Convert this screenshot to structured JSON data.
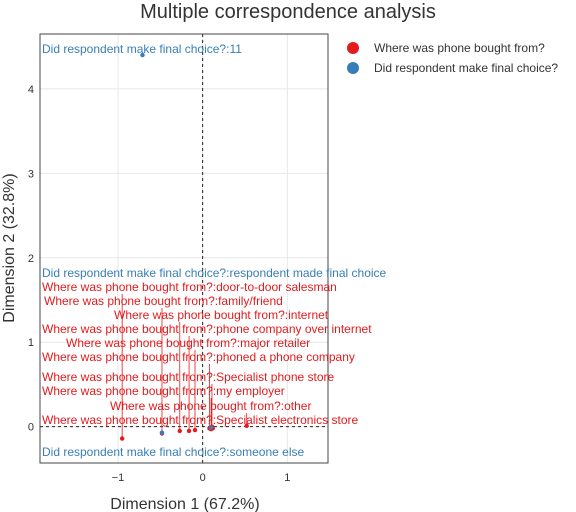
{
  "chart_data": {
    "type": "scatter",
    "title": "Multiple correspondence analysis",
    "xlabel": "Dimension 1 (67.2%)",
    "ylabel": "Dimension 2 (32.8%)",
    "xlim": [
      -1.92,
      1.48
    ],
    "ylim": [
      -0.43,
      4.65
    ],
    "xticks": [
      -1,
      0,
      1
    ],
    "yticks": [
      0,
      1,
      2,
      3,
      4
    ],
    "grid": true,
    "reference_lines": {
      "x": 0,
      "y": 0,
      "style": "dashed"
    },
    "legend_position": "top-right",
    "series": [
      {
        "name": "Where was phone bought from?",
        "color": "#e41a1c",
        "points": [
          {
            "label": "Where was phone bought from?:door-to-door salesman",
            "x": -0.95,
            "y": -0.14
          },
          {
            "label": "Where was phone bought from?:family/friend",
            "x": -0.48,
            "y": -0.08
          },
          {
            "label": "Where was phone bought from?:internet",
            "x": -0.27,
            "y": -0.05
          },
          {
            "label": "Where was phone bought from?:phone company over internet",
            "x": -0.16,
            "y": -0.05
          },
          {
            "label": "Where was phone bought from?:major retailer",
            "x": -0.09,
            "y": -0.04
          },
          {
            "label": "Where was phone bought from?:phoned a phone company",
            "x": 0.08,
            "y": -0.02
          },
          {
            "label": "Where was phone bought from?:Specialist phone store",
            "x": 0.11,
            "y": 0.0
          },
          {
            "label": "Where was phone bought from?:my employer",
            "x": 0.1,
            "y": -0.03
          },
          {
            "label": "Where was phone bought from?:other",
            "x": 0.52,
            "y": 0.01
          },
          {
            "label": "Where was phone bought from?:Specialist electronics store",
            "x": 0.12,
            "y": -0.02
          }
        ]
      },
      {
        "name": "Did respondent make final choice?",
        "color": "#377eb8",
        "points": [
          {
            "label": "Did respondent make final choice?:11",
            "x": -0.71,
            "y": 4.4
          },
          {
            "label": "Did respondent make final choice?:respondent made final choice",
            "x": 0.1,
            "y": -0.01
          },
          {
            "label": "Did respondent make final choice?:someone else",
            "x": -0.48,
            "y": -0.07
          }
        ]
      }
    ]
  }
}
